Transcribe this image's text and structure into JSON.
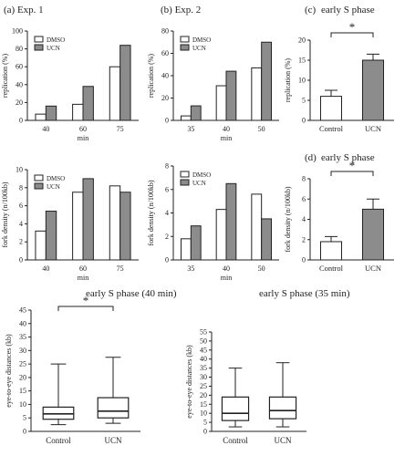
{
  "figure": {
    "panel_labels": [
      "(a) Exp. 1",
      "(b) Exp. 2",
      "(c)",
      "(d)"
    ]
  },
  "colors": {
    "dmso": "#ffffff",
    "ucn": "#8c8c8c",
    "stroke": "#222222"
  },
  "chart_data": [
    {
      "id": "a_replication",
      "type": "bar",
      "title": "",
      "xlabel": "min",
      "ylabel": "replication (%)",
      "ylim": [
        0,
        100
      ],
      "yticks": [
        0,
        20,
        40,
        60,
        80,
        100
      ],
      "categories": [
        "40",
        "60",
        "75"
      ],
      "series": [
        {
          "name": "DMSO",
          "values": [
            7,
            18,
            60
          ]
        },
        {
          "name": "UCN",
          "values": [
            16,
            38,
            84
          ]
        }
      ],
      "legend": "top-left"
    },
    {
      "id": "b_replication",
      "type": "bar",
      "title": "",
      "xlabel": "min",
      "ylabel": "replication (%)",
      "ylim": [
        0,
        80
      ],
      "yticks": [
        0,
        20,
        40,
        60,
        80
      ],
      "categories": [
        "35",
        "40",
        "50"
      ],
      "series": [
        {
          "name": "DMSO",
          "values": [
            4,
            31,
            47
          ]
        },
        {
          "name": "UCN",
          "values": [
            13,
            44,
            70
          ]
        }
      ],
      "legend": "top-left"
    },
    {
      "id": "c_replication",
      "type": "bar",
      "title": "early S phase",
      "xlabel": "",
      "ylabel": "replication (%)",
      "ylim": [
        0,
        20
      ],
      "yticks": [
        0,
        5,
        10,
        15,
        20
      ],
      "categories": [
        "Control",
        "UCN"
      ],
      "values": [
        6,
        15
      ],
      "errors": [
        1.5,
        1.5
      ],
      "significance": "*"
    },
    {
      "id": "a_fork",
      "type": "bar",
      "title": "",
      "xlabel": "min",
      "ylabel": "fork density (n/100kb)",
      "ylim": [
        0,
        10
      ],
      "yticks": [
        0,
        2,
        4,
        6,
        8,
        10
      ],
      "categories": [
        "40",
        "60",
        "75"
      ],
      "series": [
        {
          "name": "DMSO",
          "values": [
            3.2,
            7.5,
            8.2
          ]
        },
        {
          "name": "UCN",
          "values": [
            5.4,
            9.0,
            7.5
          ]
        }
      ],
      "legend": "top-left"
    },
    {
      "id": "b_fork",
      "type": "bar",
      "title": "",
      "xlabel": "min",
      "ylabel": "fork density (n/100kb)",
      "ylim": [
        0,
        8
      ],
      "yticks": [
        0,
        2,
        4,
        6,
        8
      ],
      "categories": [
        "35",
        "40",
        "50"
      ],
      "series": [
        {
          "name": "DMSO",
          "values": [
            1.8,
            4.3,
            5.6
          ]
        },
        {
          "name": "UCN",
          "values": [
            2.9,
            6.5,
            3.5
          ]
        }
      ],
      "legend": "top-left"
    },
    {
      "id": "d_fork",
      "type": "bar",
      "title": "early S phase",
      "xlabel": "",
      "ylabel": "fork density (n/100kb)",
      "ylim": [
        0,
        8
      ],
      "yticks": [
        0,
        2,
        4,
        6,
        8
      ],
      "categories": [
        "Control",
        "UCN"
      ],
      "values": [
        1.8,
        5.0
      ],
      "errors": [
        0.5,
        1.0
      ],
      "significance": "*"
    },
    {
      "id": "box_40",
      "type": "box",
      "title": "early S phase  (40 min)",
      "xlabel": "",
      "ylabel": "eye-to-eye distances (kb)",
      "ylim": [
        0,
        45
      ],
      "yticks": [
        0,
        5,
        10,
        15,
        20,
        25,
        30,
        35,
        40,
        45
      ],
      "categories": [
        "Control",
        "UCN"
      ],
      "boxes": [
        {
          "min": 2.5,
          "q1": 4.5,
          "median": 6.5,
          "q3": 9,
          "max": 25
        },
        {
          "min": 3,
          "q1": 5,
          "median": 7.5,
          "q3": 12.5,
          "max": 27.5
        }
      ],
      "significance": "*"
    },
    {
      "id": "box_35",
      "type": "box",
      "title": "early S phase (35 min)",
      "xlabel": "",
      "ylabel": "eye-to-eye distances (kb)",
      "ylim": [
        0,
        55
      ],
      "yticks": [
        0,
        5,
        10,
        15,
        20,
        25,
        30,
        35,
        40,
        45,
        50,
        55
      ],
      "categories": [
        "Control",
        "UCN"
      ],
      "boxes": [
        {
          "min": 2.5,
          "q1": 6,
          "median": 10,
          "q3": 19,
          "max": 35
        },
        {
          "min": 2.5,
          "q1": 7,
          "median": 11.5,
          "q3": 19,
          "max": 38
        }
      ]
    }
  ]
}
